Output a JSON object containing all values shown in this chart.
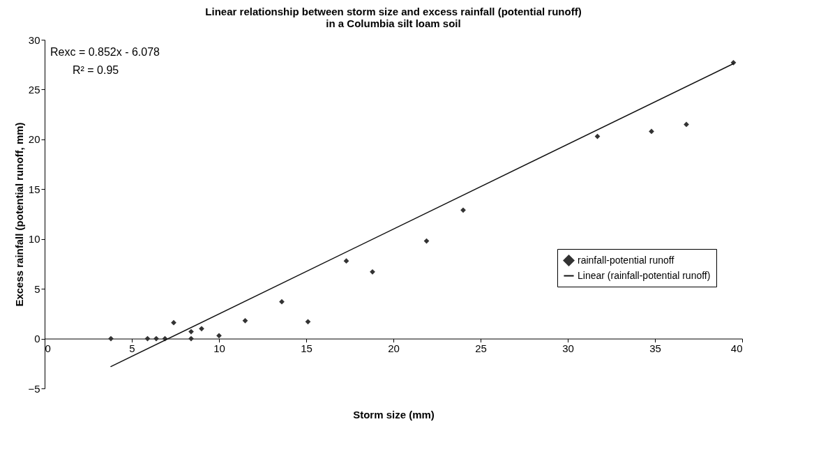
{
  "chart_data": {
    "type": "scatter",
    "title": "Linear relationship between storm size and excess rainfall (potential runoff) in a Columbia silt loam soil",
    "xlabel": "Storm size (mm)",
    "ylabel": "Excess rainfall (potential runoff, mm)",
    "xlim": [
      0,
      40
    ],
    "xticks": [
      0,
      5,
      10,
      15,
      20,
      25,
      30,
      35,
      40
    ],
    "ylim": [
      -5,
      30
    ],
    "yticks": [
      -5,
      0,
      5,
      10,
      15,
      20,
      25,
      30
    ],
    "grid": false,
    "legend": "bottom right",
    "annotations": [
      "Rexc = 0.852x - 6.078",
      "R² = 0.95"
    ],
    "series": [
      {
        "name": "rainfall-potential runoff",
        "marker": "diamond",
        "color": "#333333",
        "x": [
          3.8,
          5.9,
          6.4,
          6.9,
          7.4,
          8.4,
          8.4,
          9.0,
          10.0,
          11.5,
          13.6,
          15.1,
          17.3,
          18.8,
          21.9,
          24.0,
          31.7,
          34.8,
          36.8,
          39.5
        ],
        "values": [
          0,
          0,
          0,
          0,
          1.6,
          0.7,
          0,
          1.0,
          0.3,
          1.8,
          3.7,
          1.7,
          7.8,
          6.7,
          9.8,
          12.9,
          20.3,
          20.8,
          21.5,
          27.7
        ]
      },
      {
        "name": "Linear (rainfall-potential runoff)",
        "type": "line",
        "color": "#111111",
        "line_style": "solid",
        "x": [
          3.8,
          39.5
        ],
        "values": [
          -2.8,
          27.6
        ]
      }
    ]
  }
}
